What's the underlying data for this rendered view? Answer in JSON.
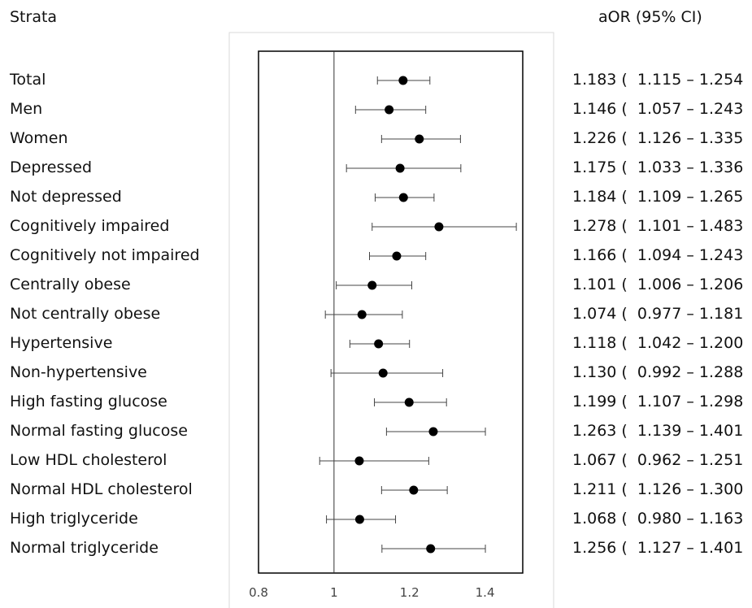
{
  "headers": {
    "strata": "Strata",
    "aor": "aOR (95% CI)"
  },
  "chart_data": {
    "type": "forest",
    "xlim": [
      0.8,
      1.5
    ],
    "x_ticks": [
      0.8,
      1,
      1.2,
      1.4
    ],
    "x_tick_labels": [
      "0.8",
      "1",
      "1.2",
      "1.4"
    ],
    "reference_line": 1,
    "rows": [
      {
        "label": "Total",
        "est": 1.183,
        "lo": 1.115,
        "hi": 1.254,
        "text": "1.183 (  1.115 – 1.254  )"
      },
      {
        "label": "Men",
        "est": 1.146,
        "lo": 1.057,
        "hi": 1.243,
        "text": "1.146 (  1.057 – 1.243  )"
      },
      {
        "label": "Women",
        "est": 1.226,
        "lo": 1.126,
        "hi": 1.335,
        "text": "1.226 (  1.126 – 1.335  )"
      },
      {
        "label": "Depressed",
        "est": 1.175,
        "lo": 1.033,
        "hi": 1.336,
        "text": "1.175 (  1.033 – 1.336  )"
      },
      {
        "label": "Not depressed",
        "est": 1.184,
        "lo": 1.109,
        "hi": 1.265,
        "text": "1.184 (  1.109 – 1.265  )"
      },
      {
        "label": "Cognitively impaired",
        "est": 1.278,
        "lo": 1.101,
        "hi": 1.483,
        "text": "1.278 (  1.101 – 1.483  )"
      },
      {
        "label": "Cognitively not impaired",
        "est": 1.166,
        "lo": 1.094,
        "hi": 1.243,
        "text": "1.166 (  1.094 – 1.243  )"
      },
      {
        "label": "Centrally obese",
        "est": 1.101,
        "lo": 1.006,
        "hi": 1.206,
        "text": "1.101 (  1.006 – 1.206  )"
      },
      {
        "label": "Not centrally obese",
        "est": 1.074,
        "lo": 0.977,
        "hi": 1.181,
        "text": "1.074 (  0.977 – 1.181  )"
      },
      {
        "label": "Hypertensive",
        "est": 1.118,
        "lo": 1.042,
        "hi": 1.2,
        "text": "1.118 (  1.042 – 1.200  )"
      },
      {
        "label": "Non-hypertensive",
        "est": 1.13,
        "lo": 0.992,
        "hi": 1.288,
        "text": "1.130 (  0.992 – 1.288  )"
      },
      {
        "label": "High fasting glucose",
        "est": 1.199,
        "lo": 1.107,
        "hi": 1.298,
        "text": "1.199 (  1.107 – 1.298  )"
      },
      {
        "label": "Normal fasting glucose",
        "est": 1.263,
        "lo": 1.139,
        "hi": 1.401,
        "text": "1.263 (  1.139 – 1.401  )"
      },
      {
        "label": "Low HDL cholesterol",
        "est": 1.067,
        "lo": 0.962,
        "hi": 1.251,
        "text": "1.067 (  0.962 – 1.251  )"
      },
      {
        "label": "Normal HDL cholesterol",
        "est": 1.211,
        "lo": 1.126,
        "hi": 1.3,
        "text": "1.211 (  1.126 – 1.300  )"
      },
      {
        "label": "High triglyceride",
        "est": 1.068,
        "lo": 0.98,
        "hi": 1.163,
        "text": "1.068 (  0.980 – 1.163  )"
      },
      {
        "label": "Normal triglyceride",
        "est": 1.256,
        "lo": 1.127,
        "hi": 1.401,
        "text": "1.256 (  1.127 – 1.401  )"
      }
    ]
  }
}
